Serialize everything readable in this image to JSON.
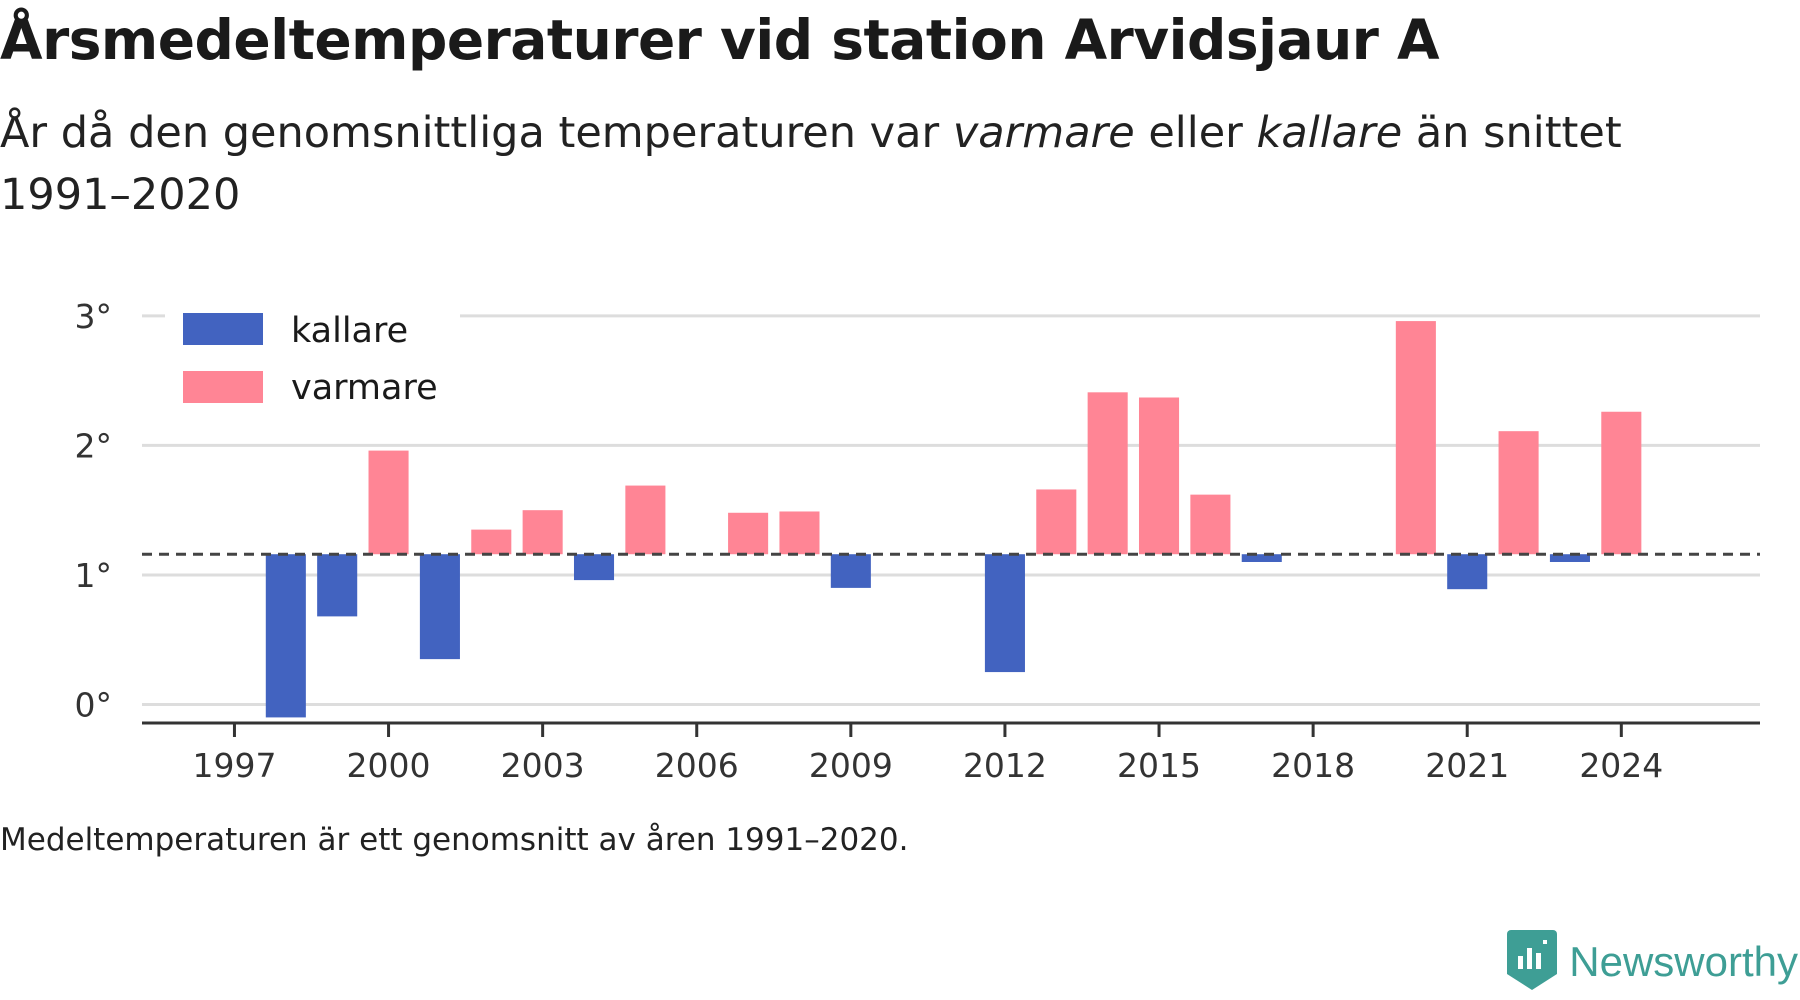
{
  "title": "Årsmedeltemperaturer vid station Arvidsjaur A",
  "subtitle": {
    "part1": "År då den genomsnittliga temperaturen var ",
    "warm_word": "varmare",
    "part2": " eller ",
    "cold_word": "kallare",
    "part3": " än snittet 1991–2020"
  },
  "footnote": "Medeltemperaturen är ett genomsnitt av åren 1991–2020.",
  "brand": {
    "name": "Newsworthy",
    "icon": "newsworthy-logo-icon"
  },
  "colors": {
    "cold": "#4263c0",
    "warm": "#ff8595",
    "grid": "#dddddd",
    "axis": "#333333",
    "reference_line": "#444444"
  },
  "chart_data": {
    "type": "bar",
    "title": "",
    "xlabel": "",
    "ylabel": "",
    "reference_value": 1.16,
    "reference_style": "dashed",
    "legend": [
      {
        "name": "kallare",
        "color": "#4263c0"
      },
      {
        "name": "varmare",
        "color": "#ff8595"
      }
    ],
    "legend_position": "top-left",
    "years": [
      1998,
      1999,
      2000,
      2001,
      2002,
      2003,
      2004,
      2005,
      2007,
      2008,
      2009,
      2012,
      2013,
      2014,
      2015,
      2016,
      2017,
      2020,
      2021,
      2022,
      2023,
      2024
    ],
    "values": [
      -0.1,
      0.68,
      1.96,
      0.35,
      1.35,
      1.5,
      0.96,
      1.69,
      1.48,
      1.49,
      0.9,
      0.25,
      1.66,
      2.41,
      2.37,
      1.62,
      1.1,
      2.96,
      0.89,
      2.11,
      1.1,
      2.26
    ],
    "x_ticks": [
      1997,
      2000,
      2003,
      2006,
      2009,
      2012,
      2015,
      2018,
      2021,
      2024
    ],
    "y_ticks": [
      0,
      1,
      2,
      3
    ],
    "y_tick_labels": [
      "0°",
      "1°",
      "2°",
      "3°"
    ],
    "xlim": [
      1995.2,
      2026.7
    ],
    "ylim": [
      -0.12,
      3.2
    ],
    "grid": "horizontal"
  }
}
